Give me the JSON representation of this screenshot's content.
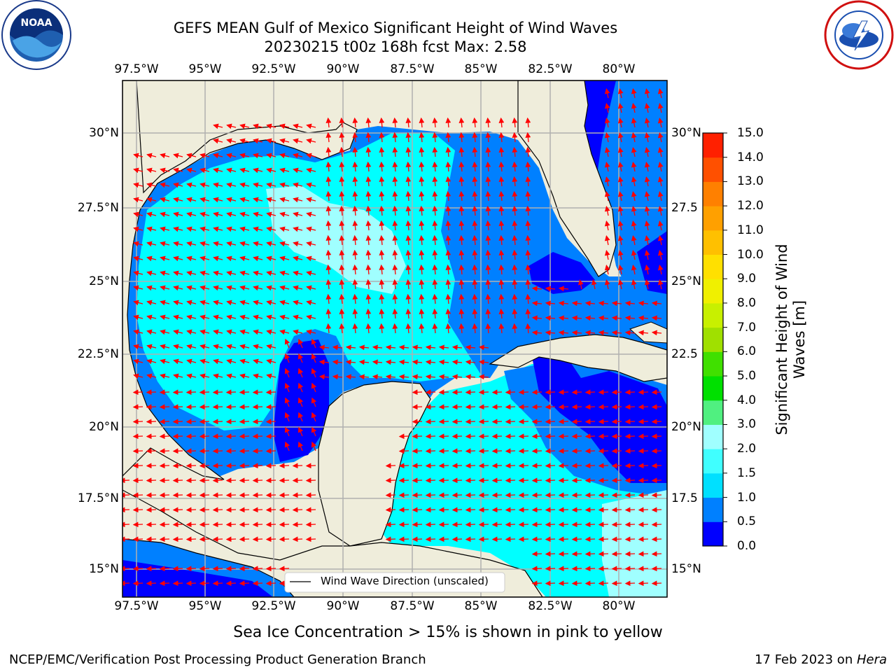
{
  "header": {
    "title_line1": "GEFS MEAN Gulf of Mexico Significant Height of Wind Waves",
    "title_line2": "20230215 t00z 168h fcst   Max: 2.58"
  },
  "logos": {
    "noaa": {
      "text": "NOAA",
      "ring_text": "NATIONAL OCEANIC AND ATMOSPHERIC ADMINISTRATION · U.S. DEPARTMENT OF COMMERCE"
    },
    "nws": {
      "ring_text": "NATIONAL WEATHER SERVICE"
    }
  },
  "map": {
    "lon_ticks": [
      "97.5°W",
      "95°W",
      "92.5°W",
      "90°W",
      "87.5°W",
      "85°W",
      "82.5°W",
      "80°W"
    ],
    "lat_ticks_left": [
      "30°N",
      "27.5°N",
      "25°N",
      "22.5°N",
      "20°N",
      "17.5°N",
      "15°N"
    ],
    "lat_ticks_right": [
      "30°N",
      "27.5",
      "25°N",
      "22.5",
      "20°N",
      "17.5",
      "15°N"
    ],
    "legend_text": "Wind Wave Direction (unscaled)",
    "colors": {
      "land": "#efeddb",
      "coast": "#000000",
      "grid": "#b0b0b0",
      "arrow": "#ff0000"
    }
  },
  "colorbar": {
    "label": "Significant Height of Wind Waves [m]",
    "ticks": [
      "0.0",
      "0.5",
      "1.0",
      "1.5",
      "2.0",
      "3.0",
      "4.0",
      "5.0",
      "6.0",
      "7.0",
      "8.0",
      "9.0",
      "10.0",
      "11.0",
      "12.0",
      "13.0",
      "14.0",
      "15.0"
    ],
    "colors": [
      "#0000ff",
      "#0080ff",
      "#00e0ff",
      "#40ffff",
      "#a0ffff",
      "#50f080",
      "#00e000",
      "#40e000",
      "#a0e000",
      "#c8f000",
      "#f0f000",
      "#ffe000",
      "#ffc000",
      "#ffa000",
      "#ff8000",
      "#ff5000",
      "#ff2000"
    ]
  },
  "notes": {
    "ice": "Sea Ice Concentration > 15% is shown in pink to yellow"
  },
  "footer": {
    "left": "NCEP/EMC/Verification Post Processing Product Generation Branch",
    "right_prefix": "17 Feb 2023 on ",
    "right_italic": "Hera"
  }
}
